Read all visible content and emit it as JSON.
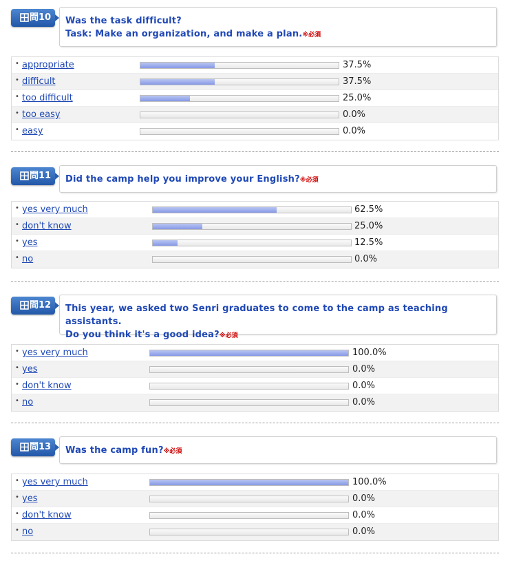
{
  "required_mark": "※必須",
  "questions": [
    {
      "badge": "問10",
      "lines": [
        "Was the task difficult?",
        "Task: Make an organization, and make a plan."
      ],
      "options": [
        {
          "label": "appropriate",
          "percent_text": "37.5%",
          "value": 37.5
        },
        {
          "label": "difficult",
          "percent_text": "37.5%",
          "value": 37.5
        },
        {
          "label": "too difficult",
          "percent_text": "25.0%",
          "value": 25.0
        },
        {
          "label": "too easy",
          "percent_text": "0.0%",
          "value": 0
        },
        {
          "label": "easy",
          "percent_text": "0.0%",
          "value": 0
        }
      ]
    },
    {
      "badge": "問11",
      "lines": [
        "Did the camp help you improve your English?"
      ],
      "options": [
        {
          "label": "yes very much",
          "percent_text": "62.5%",
          "value": 62.5
        },
        {
          "label": "don't know",
          "percent_text": "25.0%",
          "value": 25.0
        },
        {
          "label": "yes",
          "percent_text": "12.5%",
          "value": 12.5
        },
        {
          "label": "no",
          "percent_text": "0.0%",
          "value": 0
        }
      ]
    },
    {
      "badge": "問12",
      "lines": [
        "This year, we asked two Senri graduates to come to the camp as teaching assistants.",
        "Do you think it's a good idea?"
      ],
      "options": [
        {
          "label": "yes very much",
          "percent_text": "100.0%",
          "value": 100
        },
        {
          "label": "yes",
          "percent_text": "0.0%",
          "value": 0
        },
        {
          "label": "don't know",
          "percent_text": "0.0%",
          "value": 0
        },
        {
          "label": "no",
          "percent_text": "0.0%",
          "value": 0
        }
      ]
    },
    {
      "badge": "問13",
      "lines": [
        "Was the camp fun?"
      ],
      "options": [
        {
          "label": "yes very much",
          "percent_text": "100.0%",
          "value": 100
        },
        {
          "label": "yes",
          "percent_text": "0.0%",
          "value": 0
        },
        {
          "label": "don't know",
          "percent_text": "0.0%",
          "value": 0
        },
        {
          "label": "no",
          "percent_text": "0.0%",
          "value": 0
        }
      ]
    }
  ],
  "colors": {
    "question_text": "#1f48b5",
    "badge": "#2a5fae",
    "bar_fill": "#8799e6",
    "required": "#d00000"
  }
}
